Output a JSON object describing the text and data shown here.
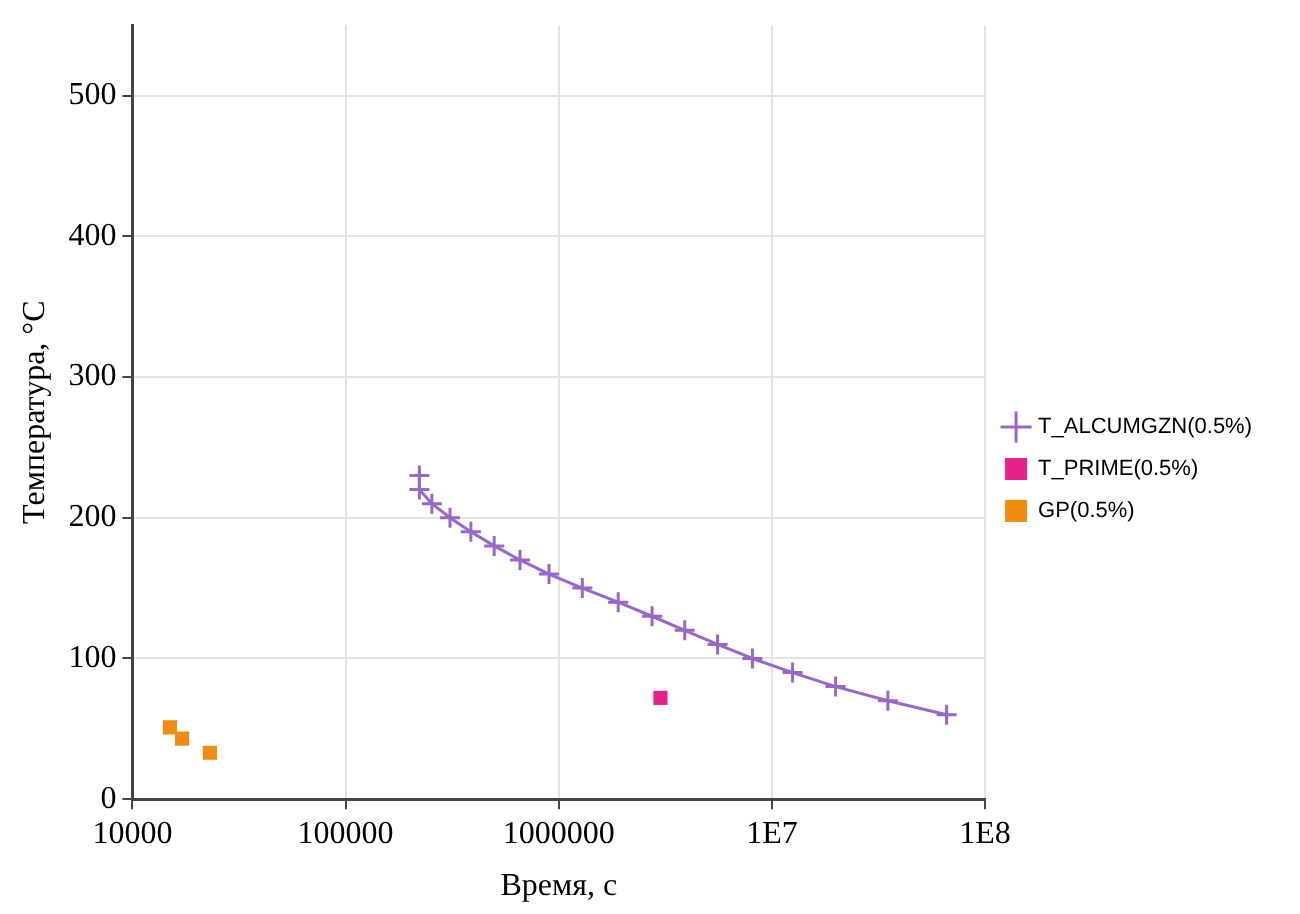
{
  "chart_data": {
    "type": "line",
    "xlabel": "Время, с",
    "ylabel": "Температура, °C",
    "log": "x",
    "grid": true,
    "legend": "right",
    "xlim": [
      10000,
      100000000
    ],
    "xticks": [
      10000,
      100000,
      1000000,
      {
        "value": 10000000,
        "label": "1E7"
      },
      {
        "value": 100000000,
        "label": "1E8"
      }
    ],
    "ylim": [
      0,
      550
    ],
    "yticks": [
      0,
      100,
      200,
      300,
      400,
      500
    ],
    "series": [
      {
        "name": "T_ALCUMGZN(0.5%)",
        "color": "#9966cc",
        "marker": "cross",
        "x": [
          222000,
          222000,
          254000,
          309000,
          387000,
          498000,
          658000,
          900000,
          1290000,
          1900000,
          2740000,
          3900000,
          5560000,
          8100000,
          12500000,
          19900000,
          35000000,
          66000000
        ],
        "values": [
          230,
          220,
          210,
          200,
          190,
          180,
          170,
          160,
          150,
          140,
          130,
          120,
          110,
          100,
          90,
          80,
          70,
          60
        ]
      },
      {
        "name": "T_PRIME(0.5%)",
        "type": "scatter",
        "color": "#e8208a",
        "marker": "square",
        "x": [
          3000000
        ],
        "values": [
          72
        ]
      },
      {
        "name": "GP(0.5%)",
        "type": "scatter",
        "color": "#f28c0f",
        "marker": "square",
        "x": [
          15000,
          17100,
          23100
        ],
        "values": [
          51,
          43,
          33
        ]
      }
    ]
  }
}
